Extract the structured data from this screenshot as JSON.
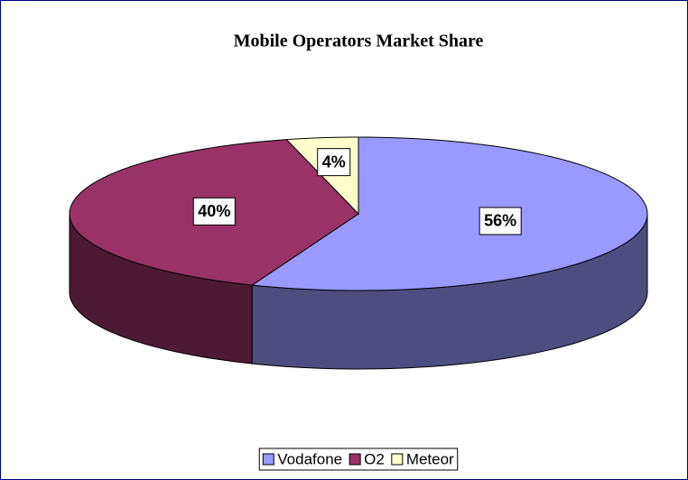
{
  "chart_data": {
    "type": "pie",
    "title": "Mobile Operators Market Share",
    "categories": [
      "Vodafone",
      "O2",
      "Meteor"
    ],
    "values": [
      56,
      40,
      4
    ],
    "value_labels": [
      "56%",
      "40%",
      "4%"
    ],
    "colors": [
      "#9999ff",
      "#993366",
      "#ffffcc"
    ],
    "legend": "bottom"
  }
}
